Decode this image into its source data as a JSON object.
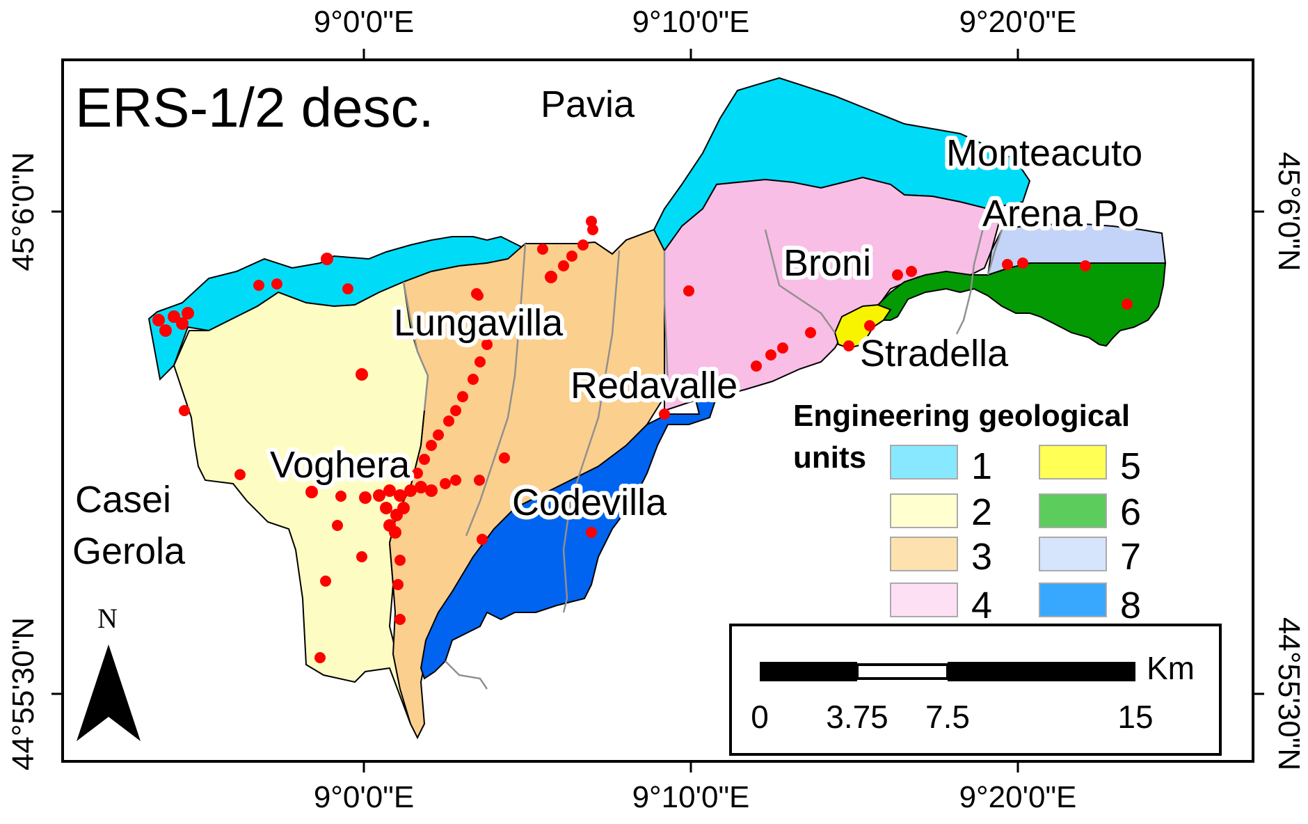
{
  "map": {
    "title": "ERS-1/2 desc.",
    "top_ticks": [
      "9°0'0\"E",
      "9°10'0\"E",
      "9°20'0\"E"
    ],
    "bottom_ticks": [
      "9°0'0\"E",
      "9°10'0\"E",
      "9°20'0\"E"
    ],
    "left_ticks": [
      "45°6'0\"N",
      "44°55'30\"N"
    ],
    "right_ticks": [
      "45°6'0\"N",
      "44°55'30\"N"
    ],
    "places": {
      "pavia": "Pavia",
      "monteacuto": "Monteacuto",
      "arena_po": "Arena Po",
      "broni": "Broni",
      "lungavilla": "Lungavilla",
      "stradella": "Stradella",
      "redavalle": "Redavalle",
      "voghera": "Voghera",
      "casei": "Casei",
      "gerola": "Gerola",
      "codevilla": "Codevilla"
    },
    "north_arrow": {
      "letter": "N",
      "icon": "north-arrow-icon"
    },
    "colors": {
      "unit1": "#00dcf8",
      "unit2": "#fdfdc3",
      "unit3": "#fbcf8e",
      "unit4": "#f8bee6",
      "unit5": "#f8f400",
      "unit6": "#049a04",
      "unit7": "#c4d4f8",
      "unit8": "#0064f0",
      "points": "#ff0000",
      "rivers": "#909090"
    }
  },
  "legend": {
    "title_line1": "Engineering geological",
    "title_line2": "units",
    "items": [
      {
        "label": "1",
        "color": "#88e8ff"
      },
      {
        "label": "2",
        "color": "#ffffd0"
      },
      {
        "label": "3",
        "color": "#fde2b0"
      },
      {
        "label": "4",
        "color": "#fde0f4"
      },
      {
        "label": "5",
        "color": "#ffff55"
      },
      {
        "label": "6",
        "color": "#5ccc5c"
      },
      {
        "label": "7",
        "color": "#d6e4fc"
      },
      {
        "label": "8",
        "color": "#38a8ff"
      }
    ]
  },
  "scale_bar": {
    "unit": "Km",
    "labels": [
      "0",
      "3.75",
      "7.5",
      "15"
    ]
  }
}
